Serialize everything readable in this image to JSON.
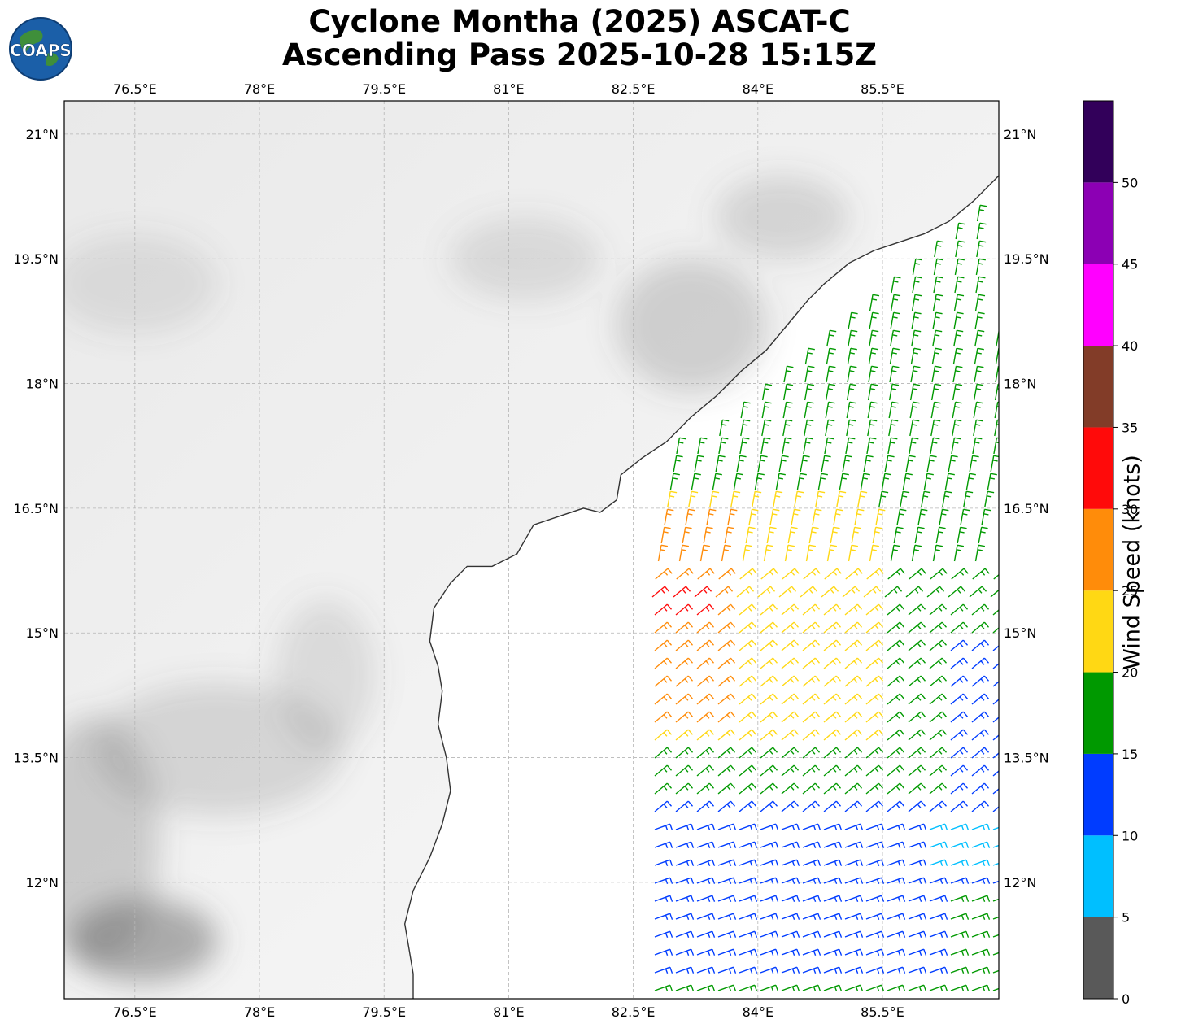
{
  "logo": {
    "text": "COAPS",
    "icon": "globe-logo-icon"
  },
  "title": {
    "line1": "Cyclone Montha (2025) ASCAT-C",
    "line2": "Ascending Pass 2025-10-28 15:15Z"
  },
  "map": {
    "lon_range": [
      75.65,
      86.9
    ],
    "lat_range": [
      10.6,
      21.4
    ],
    "lon_ticks": [
      {
        "value": 76.5,
        "label": "76.5°E"
      },
      {
        "value": 78.0,
        "label": "78°E"
      },
      {
        "value": 79.5,
        "label": "79.5°E"
      },
      {
        "value": 81.0,
        "label": "81°E"
      },
      {
        "value": 82.5,
        "label": "82.5°E"
      },
      {
        "value": 84.0,
        "label": "84°E"
      },
      {
        "value": 85.5,
        "label": "85.5°E"
      }
    ],
    "lat_ticks": [
      {
        "value": 21.0,
        "label": "21°N"
      },
      {
        "value": 19.5,
        "label": "19.5°N"
      },
      {
        "value": 18.0,
        "label": "18°N"
      },
      {
        "value": 16.5,
        "label": "16.5°N"
      },
      {
        "value": 15.0,
        "label": "15°N"
      },
      {
        "value": 13.5,
        "label": "13.5°N"
      },
      {
        "value": 12.0,
        "label": "12°N"
      }
    ],
    "gridlines": true,
    "coastline": [
      [
        87.0,
        20.6
      ],
      [
        86.8,
        20.4
      ],
      [
        86.6,
        20.2
      ],
      [
        86.3,
        19.95
      ],
      [
        86.0,
        19.8
      ],
      [
        85.7,
        19.7
      ],
      [
        85.4,
        19.6
      ],
      [
        85.1,
        19.45
      ],
      [
        84.8,
        19.2
      ],
      [
        84.6,
        19.0
      ],
      [
        84.35,
        18.7
      ],
      [
        84.1,
        18.4
      ],
      [
        83.8,
        18.15
      ],
      [
        83.5,
        17.85
      ],
      [
        83.2,
        17.6
      ],
      [
        82.9,
        17.3
      ],
      [
        82.6,
        17.1
      ],
      [
        82.35,
        16.9
      ],
      [
        82.3,
        16.6
      ],
      [
        82.1,
        16.45
      ],
      [
        81.9,
        16.5
      ],
      [
        81.6,
        16.4
      ],
      [
        81.3,
        16.3
      ],
      [
        81.1,
        15.95
      ],
      [
        80.8,
        15.8
      ],
      [
        80.5,
        15.8
      ],
      [
        80.3,
        15.6
      ],
      [
        80.1,
        15.3
      ],
      [
        80.05,
        14.9
      ],
      [
        80.15,
        14.6
      ],
      [
        80.2,
        14.3
      ],
      [
        80.15,
        13.9
      ],
      [
        80.25,
        13.5
      ],
      [
        80.3,
        13.1
      ],
      [
        80.2,
        12.7
      ],
      [
        80.05,
        12.3
      ],
      [
        79.85,
        11.9
      ],
      [
        79.75,
        11.5
      ],
      [
        79.8,
        11.2
      ],
      [
        79.85,
        10.9
      ],
      [
        79.85,
        10.6
      ]
    ],
    "land_shading": [
      {
        "lon": 76.6,
        "lat": 11.3,
        "rx": 0.9,
        "ry": 0.5,
        "opacity": 0.45
      },
      {
        "lon": 76.0,
        "lat": 12.5,
        "rx": 0.8,
        "ry": 1.5,
        "opacity": 0.25
      },
      {
        "lon": 77.5,
        "lat": 13.6,
        "rx": 1.5,
        "ry": 0.8,
        "opacity": 0.18
      },
      {
        "lon": 78.8,
        "lat": 14.5,
        "rx": 0.6,
        "ry": 0.9,
        "opacity": 0.15
      },
      {
        "lon": 83.2,
        "lat": 18.7,
        "rx": 0.9,
        "ry": 0.8,
        "opacity": 0.22
      },
      {
        "lon": 84.3,
        "lat": 20.0,
        "rx": 0.8,
        "ry": 0.5,
        "opacity": 0.18
      },
      {
        "lon": 81.2,
        "lat": 19.5,
        "rx": 0.9,
        "ry": 0.5,
        "opacity": 0.15
      },
      {
        "lon": 76.5,
        "lat": 19.2,
        "rx": 1.0,
        "ry": 0.6,
        "opacity": 0.12
      }
    ]
  },
  "colorbar": {
    "label": "Wind Speed (knots)",
    "range": [
      0,
      55
    ],
    "bins": [
      {
        "from": 0,
        "to": 5,
        "color": "#595959"
      },
      {
        "from": 5,
        "to": 10,
        "color": "#00bfff"
      },
      {
        "from": 10,
        "to": 15,
        "color": "#003cff"
      },
      {
        "from": 15,
        "to": 20,
        "color": "#009900"
      },
      {
        "from": 20,
        "to": 25,
        "color": "#ffd814"
      },
      {
        "from": 25,
        "to": 30,
        "color": "#ff8c0a"
      },
      {
        "from": 30,
        "to": 35,
        "color": "#ff0a0a"
      },
      {
        "from": 35,
        "to": 40,
        "color": "#823c28"
      },
      {
        "from": 40,
        "to": 45,
        "color": "#ff00ff"
      },
      {
        "from": 45,
        "to": 50,
        "color": "#8c00b4"
      },
      {
        "from": 50,
        "to": 55,
        "color": "#32005a"
      }
    ],
    "ticks": [
      "0",
      "5",
      "10",
      "15",
      "20",
      "25",
      "30",
      "35",
      "40",
      "45",
      "50"
    ]
  }
}
